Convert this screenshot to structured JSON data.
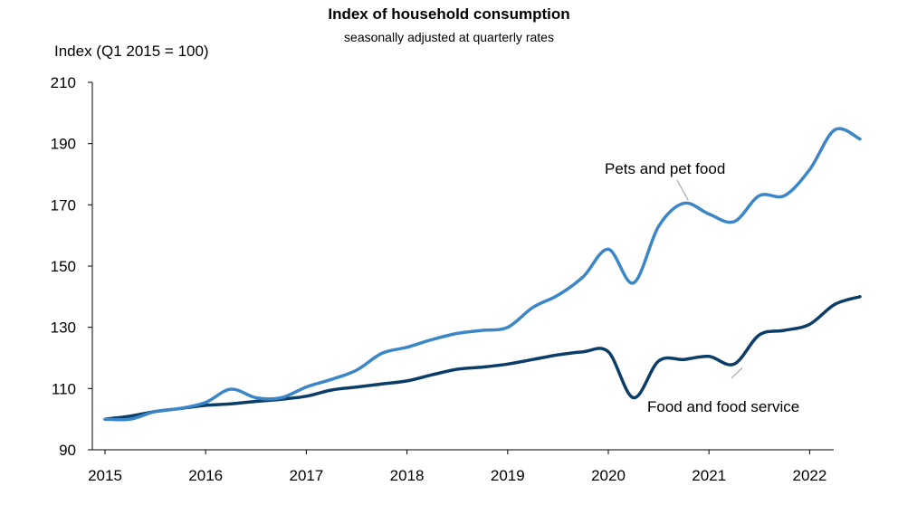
{
  "chart_data": {
    "type": "line",
    "title": "Index of household consumption",
    "subtitle": "seasonally adjusted at quarterly rates",
    "ylabel": "Index (Q1 2015 = 100)",
    "xlabel": "",
    "ylim": [
      90,
      210
    ],
    "xlim": [
      2015,
      2022.75
    ],
    "yticks": [
      90,
      110,
      130,
      150,
      170,
      190,
      210
    ],
    "xticks": [
      2015,
      2016,
      2017,
      2018,
      2019,
      2020,
      2021,
      2022
    ],
    "grid": false,
    "legend": "none",
    "x": [
      2015.0,
      2015.25,
      2015.5,
      2015.75,
      2016.0,
      2016.25,
      2016.5,
      2016.75,
      2017.0,
      2017.25,
      2017.5,
      2017.75,
      2018.0,
      2018.25,
      2018.5,
      2018.75,
      2019.0,
      2019.25,
      2019.5,
      2019.75,
      2020.0,
      2020.25,
      2020.5,
      2020.75,
      2021.0,
      2021.25,
      2021.5,
      2021.75,
      2022.0,
      2022.25,
      2022.5
    ],
    "series": [
      {
        "name": "Pets and pet food",
        "color": "#3b86c6",
        "values": [
          100.0,
          100.0,
          102.5,
          103.5,
          105.5,
          109.8,
          107.0,
          107.0,
          110.5,
          113.0,
          116.0,
          121.5,
          123.5,
          126.0,
          128.0,
          129.0,
          130.0,
          136.5,
          140.5,
          146.5,
          155.5,
          144.5,
          163.0,
          170.5,
          167.0,
          164.5,
          173.0,
          173.0,
          181.5,
          194.5,
          191.5
        ]
      },
      {
        "name": "Food and food service",
        "color": "#0b3d68",
        "values": [
          100.0,
          101.0,
          102.5,
          103.5,
          104.5,
          105.0,
          105.8,
          106.5,
          107.5,
          109.5,
          110.5,
          111.5,
          112.5,
          114.5,
          116.3,
          117.0,
          118.0,
          119.5,
          121.0,
          122.0,
          122.0,
          107.0,
          119.0,
          119.5,
          120.5,
          118.0,
          127.5,
          129.0,
          131.0,
          137.5,
          140.0
        ]
      }
    ],
    "annotations": [
      {
        "text": "Pets and pet food"
      },
      {
        "text": "Food and food service"
      }
    ]
  }
}
